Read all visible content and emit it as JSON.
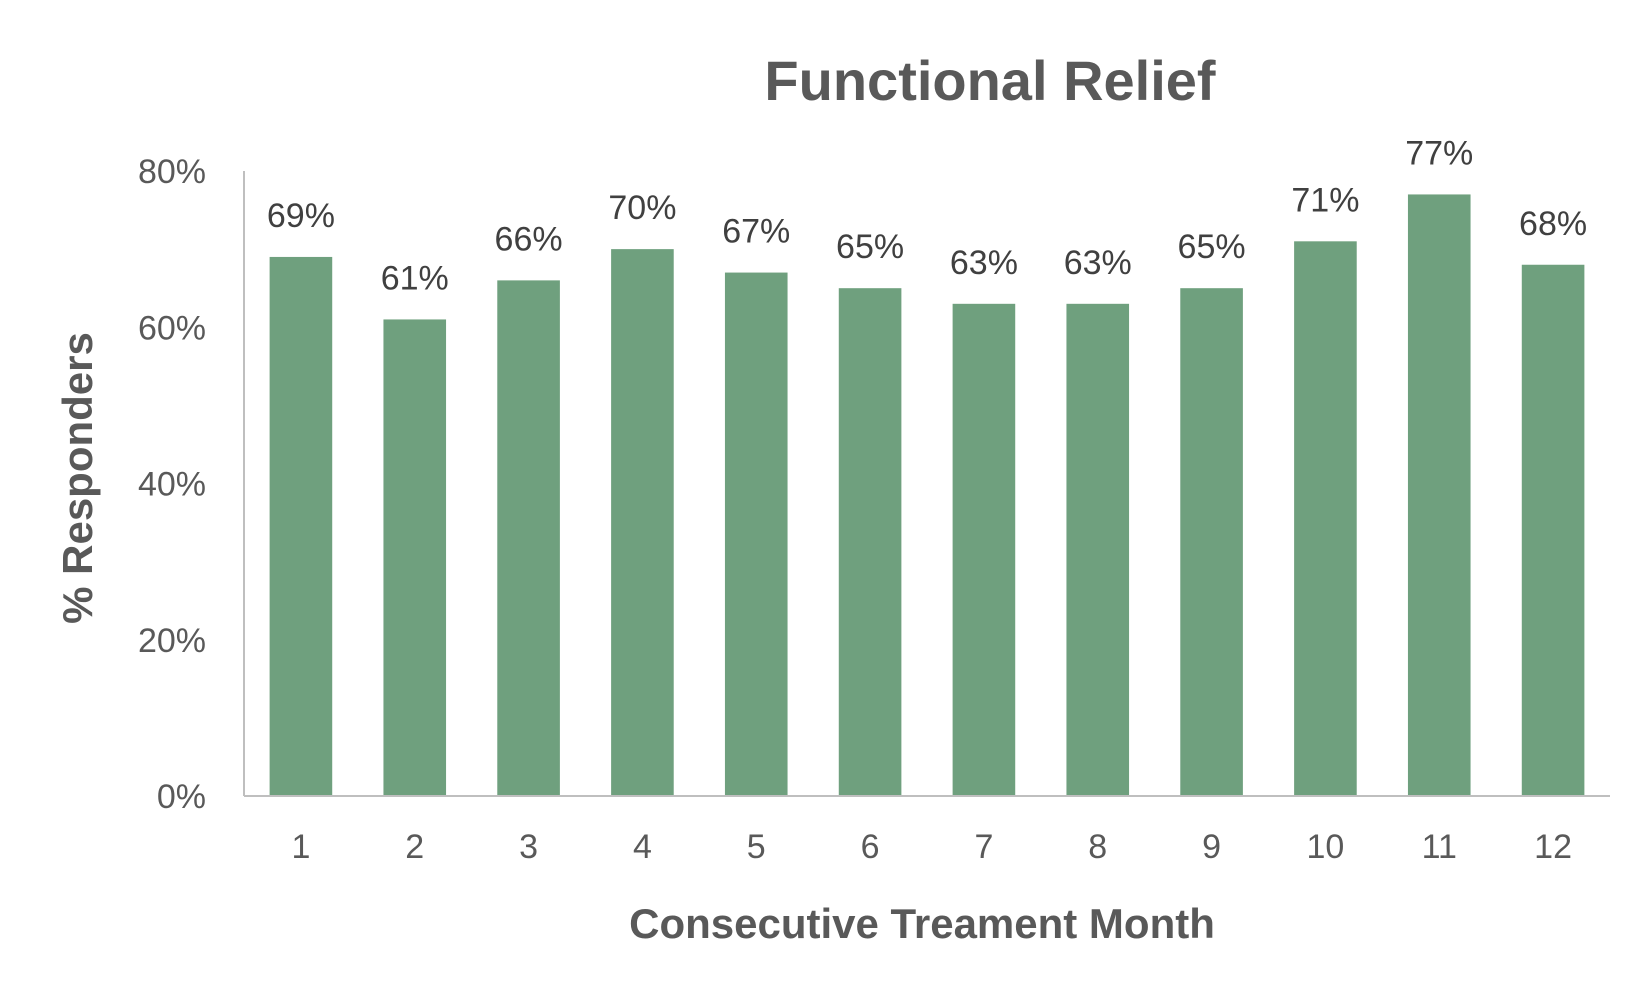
{
  "chart_data": {
    "type": "bar",
    "title": "Functional Relief",
    "xlabel": "Consecutive Treament Month",
    "ylabel": "% Responders",
    "categories": [
      "1",
      "2",
      "3",
      "4",
      "5",
      "6",
      "7",
      "8",
      "9",
      "10",
      "11",
      "12"
    ],
    "values": [
      69,
      61,
      66,
      70,
      67,
      65,
      63,
      63,
      65,
      71,
      77,
      68
    ],
    "data_labels": [
      "69%",
      "61%",
      "66%",
      "70%",
      "67%",
      "65%",
      "63%",
      "63%",
      "65%",
      "71%",
      "77%",
      "68%"
    ],
    "y_ticks": [
      0,
      20,
      40,
      60,
      80
    ],
    "y_tick_labels": [
      "0%",
      "20%",
      "40%",
      "60%",
      "80%"
    ],
    "ylim": [
      0,
      80
    ],
    "grid": false,
    "legend": "none",
    "colors": {
      "bar": "#6fa07e",
      "text": "#595959",
      "axis": "#bfbfbf"
    }
  }
}
